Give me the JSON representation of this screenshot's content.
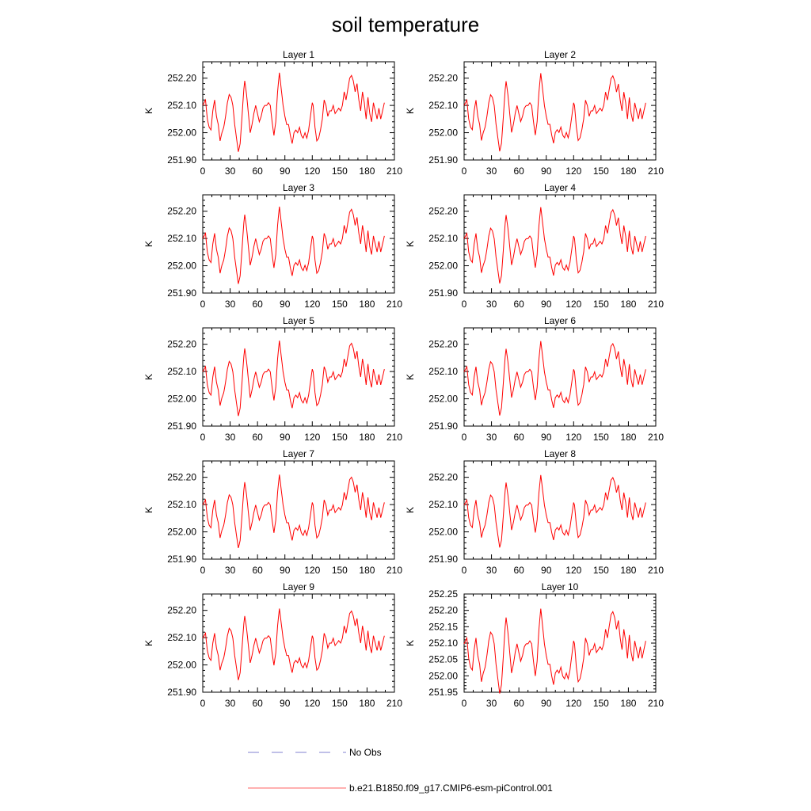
{
  "figure": {
    "title": "soil temperature"
  },
  "legend": [
    {
      "label": "No Obs",
      "color": "#8080d0",
      "style": "dashed"
    },
    {
      "label": "b.e21.B1850.f09_g17.CMIP6-esm-piControl.001",
      "color": "#ff0000",
      "style": "solid"
    }
  ],
  "chart_data": [
    {
      "type": "line",
      "title": "Layer 1",
      "ylabel": "K",
      "xlim": [
        0,
        210
      ],
      "xticks": [
        0,
        30,
        60,
        90,
        120,
        150,
        180,
        210
      ],
      "ylim": [
        251.9,
        252.26
      ],
      "yticks": [
        251.9,
        252.0,
        252.1,
        252.2
      ],
      "ytick_labels": [
        "251.90",
        "252.00",
        "252.10",
        "252.20"
      ],
      "series": [
        {
          "name": "b.e21.B1850.f09_g17.CMIP6-esm-piControl.001",
          "x_step": 1,
          "values": []
        }
      ]
    },
    {
      "type": "line",
      "title": "Layer 2",
      "ylabel": "K",
      "xlim": [
        0,
        210
      ],
      "xticks": [
        0,
        30,
        60,
        90,
        120,
        150,
        180,
        210
      ],
      "ylim": [
        251.9,
        252.26
      ],
      "yticks": [
        251.9,
        252.0,
        252.1,
        252.2
      ],
      "ytick_labels": [
        "251.90",
        "252.00",
        "252.10",
        "252.20"
      ],
      "series": [
        {
          "name": "b.e21.B1850.f09_g17.CMIP6-esm-piControl.001",
          "x_step": 1,
          "values": []
        }
      ]
    },
    {
      "type": "line",
      "title": "Layer 3",
      "ylabel": "K",
      "xlim": [
        0,
        210
      ],
      "xticks": [
        0,
        30,
        60,
        90,
        120,
        150,
        180,
        210
      ],
      "ylim": [
        251.9,
        252.26
      ],
      "yticks": [
        251.9,
        252.0,
        252.1,
        252.2
      ],
      "ytick_labels": [
        "251.90",
        "252.00",
        "252.10",
        "252.20"
      ],
      "series": [
        {
          "name": "b.e21.B1850.f09_g17.CMIP6-esm-piControl.001",
          "x_step": 1,
          "values": []
        }
      ]
    },
    {
      "type": "line",
      "title": "Layer 4",
      "ylabel": "K",
      "xlim": [
        0,
        210
      ],
      "xticks": [
        0,
        30,
        60,
        90,
        120,
        150,
        180,
        210
      ],
      "ylim": [
        251.9,
        252.26
      ],
      "yticks": [
        251.9,
        252.0,
        252.1,
        252.2
      ],
      "ytick_labels": [
        "251.90",
        "252.00",
        "252.10",
        "252.20"
      ],
      "series": [
        {
          "name": "b.e21.B1850.f09_g17.CMIP6-esm-piControl.001",
          "x_step": 1,
          "values": []
        }
      ]
    },
    {
      "type": "line",
      "title": "Layer 5",
      "ylabel": "K",
      "xlim": [
        0,
        210
      ],
      "xticks": [
        0,
        30,
        60,
        90,
        120,
        150,
        180,
        210
      ],
      "ylim": [
        251.9,
        252.26
      ],
      "yticks": [
        251.9,
        252.0,
        252.1,
        252.2
      ],
      "ytick_labels": [
        "251.90",
        "252.00",
        "252.10",
        "252.20"
      ],
      "series": [
        {
          "name": "b.e21.B1850.f09_g17.CMIP6-esm-piControl.001",
          "x_step": 1,
          "values": []
        }
      ]
    },
    {
      "type": "line",
      "title": "Layer 6",
      "ylabel": "K",
      "xlim": [
        0,
        210
      ],
      "xticks": [
        0,
        30,
        60,
        90,
        120,
        150,
        180,
        210
      ],
      "ylim": [
        251.9,
        252.26
      ],
      "yticks": [
        251.9,
        252.0,
        252.1,
        252.2
      ],
      "ytick_labels": [
        "251.90",
        "252.00",
        "252.10",
        "252.20"
      ],
      "series": [
        {
          "name": "b.e21.B1850.f09_g17.CMIP6-esm-piControl.001",
          "x_step": 1,
          "values": []
        }
      ]
    },
    {
      "type": "line",
      "title": "Layer 7",
      "ylabel": "K",
      "xlim": [
        0,
        210
      ],
      "xticks": [
        0,
        30,
        60,
        90,
        120,
        150,
        180,
        210
      ],
      "ylim": [
        251.9,
        252.26
      ],
      "yticks": [
        251.9,
        252.0,
        252.1,
        252.2
      ],
      "ytick_labels": [
        "251.90",
        "252.00",
        "252.10",
        "252.20"
      ],
      "series": [
        {
          "name": "b.e21.B1850.f09_g17.CMIP6-esm-piControl.001",
          "x_step": 1,
          "values": []
        }
      ]
    },
    {
      "type": "line",
      "title": "Layer 8",
      "ylabel": "K",
      "xlim": [
        0,
        210
      ],
      "xticks": [
        0,
        30,
        60,
        90,
        120,
        150,
        180,
        210
      ],
      "ylim": [
        251.9,
        252.26
      ],
      "yticks": [
        251.9,
        252.0,
        252.1,
        252.2
      ],
      "ytick_labels": [
        "251.90",
        "252.00",
        "252.10",
        "252.20"
      ],
      "series": [
        {
          "name": "b.e21.B1850.f09_g17.CMIP6-esm-piControl.001",
          "x_step": 1,
          "values": []
        }
      ]
    },
    {
      "type": "line",
      "title": "Layer 9",
      "ylabel": "K",
      "xlim": [
        0,
        210
      ],
      "xticks": [
        0,
        30,
        60,
        90,
        120,
        150,
        180,
        210
      ],
      "ylim": [
        251.9,
        252.26
      ],
      "yticks": [
        251.9,
        252.0,
        252.1,
        252.2
      ],
      "ytick_labels": [
        "251.90",
        "252.00",
        "252.10",
        "252.20"
      ],
      "series": [
        {
          "name": "b.e21.B1850.f09_g17.CMIP6-esm-piControl.001",
          "x_step": 1,
          "values": []
        }
      ]
    },
    {
      "type": "line",
      "title": "Layer 10",
      "ylabel": "K",
      "xlim": [
        0,
        210
      ],
      "xticks": [
        0,
        30,
        60,
        90,
        120,
        150,
        180,
        210
      ],
      "ylim": [
        251.95,
        252.25
      ],
      "yticks": [
        251.95,
        252.0,
        252.05,
        252.1,
        252.15,
        252.2,
        252.25
      ],
      "ytick_labels": [
        "251.95",
        "252.00",
        "252.05",
        "252.10",
        "252.15",
        "252.20",
        "252.25"
      ],
      "series": [
        {
          "name": "b.e21.B1850.f09_g17.CMIP6-esm-piControl.001",
          "x_step": 1,
          "values": []
        }
      ]
    }
  ],
  "series_knots": [
    [
      0,
      252.1
    ],
    [
      3,
      252.12
    ],
    [
      5,
      252.05
    ],
    [
      7,
      252.02
    ],
    [
      9,
      252.01
    ],
    [
      11,
      252.08
    ],
    [
      13,
      252.12
    ],
    [
      15,
      252.06
    ],
    [
      17,
      252.03
    ],
    [
      19,
      251.97
    ],
    [
      21,
      252.0
    ],
    [
      23,
      252.02
    ],
    [
      25,
      252.06
    ],
    [
      27,
      252.11
    ],
    [
      29,
      252.14
    ],
    [
      31,
      252.13
    ],
    [
      33,
      252.1
    ],
    [
      35,
      252.03
    ],
    [
      37,
      251.98
    ],
    [
      39,
      251.93
    ],
    [
      41,
      251.96
    ],
    [
      43,
      252.06
    ],
    [
      45,
      252.16
    ],
    [
      46,
      252.19
    ],
    [
      48,
      252.14
    ],
    [
      50,
      252.07
    ],
    [
      52,
      252.0
    ],
    [
      54,
      252.03
    ],
    [
      56,
      252.07
    ],
    [
      58,
      252.1
    ],
    [
      60,
      252.07
    ],
    [
      62,
      252.04
    ],
    [
      64,
      252.06
    ],
    [
      66,
      252.09
    ],
    [
      68,
      252.1
    ],
    [
      70,
      252.1
    ],
    [
      72,
      252.11
    ],
    [
      74,
      252.1
    ],
    [
      76,
      252.04
    ],
    [
      78,
      251.99
    ],
    [
      80,
      252.04
    ],
    [
      82,
      252.15
    ],
    [
      84,
      252.22
    ],
    [
      86,
      252.16
    ],
    [
      88,
      252.1
    ],
    [
      90,
      252.06
    ],
    [
      92,
      252.03
    ],
    [
      94,
      252.03
    ],
    [
      96,
      251.99
    ],
    [
      98,
      251.96
    ],
    [
      100,
      252.0
    ],
    [
      102,
      252.01
    ],
    [
      104,
      252.0
    ],
    [
      106,
      252.02
    ],
    [
      108,
      251.99
    ],
    [
      110,
      251.98
    ],
    [
      112,
      252.0
    ],
    [
      114,
      251.98
    ],
    [
      116,
      252.01
    ],
    [
      118,
      252.06
    ],
    [
      120,
      252.11
    ],
    [
      121,
      252.1
    ],
    [
      123,
      252.02
    ],
    [
      125,
      251.97
    ],
    [
      127,
      251.98
    ],
    [
      129,
      252.01
    ],
    [
      131,
      252.05
    ],
    [
      133,
      252.12
    ],
    [
      135,
      252.1
    ],
    [
      137,
      252.06
    ],
    [
      139,
      252.08
    ],
    [
      141,
      252.08
    ],
    [
      143,
      252.1
    ],
    [
      145,
      252.07
    ],
    [
      147,
      252.08
    ],
    [
      149,
      252.09
    ],
    [
      151,
      252.08
    ],
    [
      153,
      252.1
    ],
    [
      155,
      252.15
    ],
    [
      157,
      252.12
    ],
    [
      159,
      252.16
    ],
    [
      161,
      252.2
    ],
    [
      163,
      252.21
    ],
    [
      165,
      252.19
    ],
    [
      167,
      252.15
    ],
    [
      169,
      252.18
    ],
    [
      171,
      252.12
    ],
    [
      173,
      252.08
    ],
    [
      175,
      252.15
    ],
    [
      177,
      252.11
    ],
    [
      179,
      252.05
    ],
    [
      181,
      252.13
    ],
    [
      183,
      252.07
    ],
    [
      185,
      252.04
    ],
    [
      187,
      252.11
    ],
    [
      189,
      252.08
    ],
    [
      191,
      252.05
    ],
    [
      193,
      252.09
    ],
    [
      195,
      252.05
    ],
    [
      197,
      252.08
    ],
    [
      199,
      252.11
    ]
  ]
}
